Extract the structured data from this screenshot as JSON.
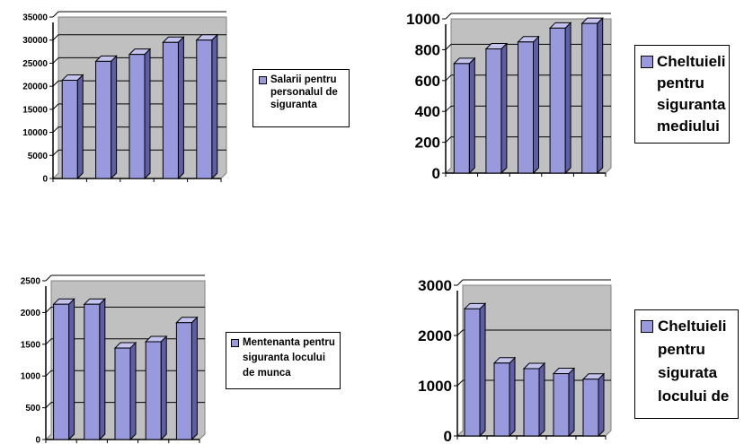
{
  "chart_data": [
    {
      "type": "bar",
      "categories": [
        "",
        "",
        "",
        "",
        ""
      ],
      "series": [
        {
          "name": "Salarii pentru personalul de siguranta",
          "values": [
            21300,
            25400,
            26900,
            29500,
            30000
          ]
        }
      ],
      "yticks": [
        "35000",
        "30000",
        "25000",
        "20000",
        "15000",
        "10000",
        "5000",
        "0"
      ],
      "ylim": [
        0,
        35000
      ],
      "grid": true,
      "legend": "right"
    },
    {
      "type": "bar",
      "categories": [
        "",
        "",
        "",
        "",
        ""
      ],
      "series": [
        {
          "name": "Cheltuieli pentru siguranta mediului",
          "values": [
            710,
            805,
            850,
            940,
            970
          ]
        }
      ],
      "yticks": [
        "1000",
        "800",
        "600",
        "400",
        "200",
        "0"
      ],
      "ylim": [
        0,
        1000
      ],
      "grid": true,
      "legend": "right"
    },
    {
      "type": "bar",
      "categories": [
        "",
        "",
        "",
        "",
        ""
      ],
      "series": [
        {
          "name": "Mentenanta pentru siguranta locului de munca",
          "values": [
            2130,
            2130,
            1440,
            1540,
            1840
          ]
        }
      ],
      "yticks": [
        "2500",
        "2000",
        "1500",
        "1000",
        "500",
        "0"
      ],
      "ylim": [
        0,
        2500
      ],
      "grid": true,
      "legend": "right"
    },
    {
      "type": "bar",
      "categories": [
        "",
        "",
        "",
        "",
        ""
      ],
      "series": [
        {
          "name": "Cheltuieli pentru sigurata locului de",
          "values": [
            2530,
            1450,
            1340,
            1240,
            1130
          ]
        }
      ],
      "yticks": [
        "3000",
        "2000",
        "1000",
        "0"
      ],
      "ylim": [
        0,
        3000
      ],
      "grid": true,
      "legend": "right"
    }
  ],
  "colors": {
    "bar_face": "#9999dd",
    "bar_side": "#5e5ea6",
    "bar_top": "#c3c3ee",
    "plot_bg": "#c0c0c0"
  }
}
